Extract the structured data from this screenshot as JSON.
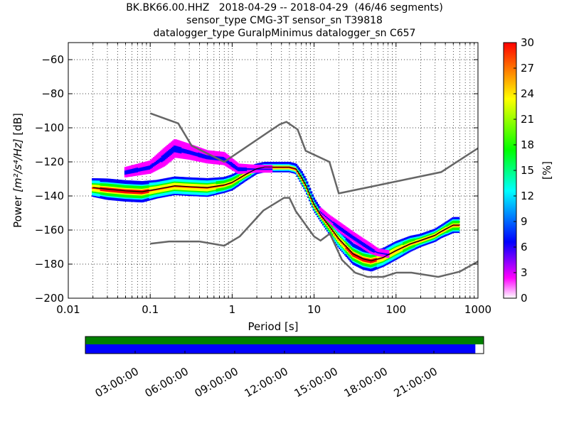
{
  "chart_data": {
    "type": "heatmap",
    "title_lines": [
      "BK.BK66.00.HHZ   2018-04-29 -- 2018-04-29  (46/46 segments)",
      "sensor_type CMG-3T sensor_sn T39818",
      "datalogger_type GuralpMinimus datalogger_sn C657"
    ],
    "xlabel": "Period [s]",
    "ylabel_main": "Power ",
    "ylabel_unit": "[m²/s⁴/Hz]",
    "ylabel_db": " [dB]",
    "xscale": "log",
    "xlim": [
      0.01,
      1000
    ],
    "ylim": [
      -200,
      -50
    ],
    "x_ticks": [
      0.01,
      0.1,
      1,
      10,
      100,
      1000
    ],
    "x_tick_labels": [
      "0.01",
      "0.1",
      "1",
      "10",
      "100",
      "1000"
    ],
    "y_ticks": [
      -200,
      -180,
      -160,
      -140,
      -120,
      -100,
      -80,
      -60
    ],
    "y_tick_labels": [
      "−200",
      "−180",
      "−160",
      "−140",
      "−120",
      "−100",
      "−80",
      "−60"
    ],
    "grid": "dotted",
    "colorbar": {
      "label": "[%]",
      "range": [
        0,
        30
      ],
      "ticks": [
        0,
        3,
        6,
        9,
        12,
        15,
        18,
        21,
        24,
        27,
        30
      ],
      "tick_labels": [
        "0",
        "3",
        "6",
        "9",
        "12",
        "15",
        "18",
        "21",
        "24",
        "27",
        "30"
      ],
      "colormap": "pqlx",
      "colors": [
        "#ffffff",
        "#ff00ff",
        "#0000ff",
        "#00ffff",
        "#00ff00",
        "#ffff00",
        "#ff0000"
      ]
    },
    "reference_curves": {
      "nhnm": {
        "color": "#666666",
        "x": [
          0.1,
          0.22,
          0.32,
          0.8,
          3.8,
          4.6,
          6.3,
          7.9,
          15.4,
          20,
          354.8,
          1000
        ],
        "y": [
          -91.5,
          -97.4,
          -110.5,
          -120,
          -98,
          -96.5,
          -101,
          -113.5,
          -120,
          -138.5,
          -126,
          -112
        ]
      },
      "nlnm": {
        "color": "#666666",
        "x": [
          0.1,
          0.17,
          0.4,
          0.8,
          1.24,
          2.4,
          4.3,
          5,
          6,
          10,
          12,
          15.6,
          21.9,
          31.6,
          45,
          70,
          101,
          154,
          328,
          600,
          1000
        ],
        "y": [
          -168,
          -166.7,
          -166.7,
          -169.2,
          -163.7,
          -148.6,
          -141.1,
          -141.1,
          -149,
          -163.8,
          -166.2,
          -162.1,
          -177.5,
          -185,
          -187.5,
          -187.5,
          -185,
          -185,
          -187.5,
          -184.4,
          -178.4
        ]
      }
    },
    "mean_curve": {
      "color": "#000000",
      "x": [
        0.02,
        0.03,
        0.05,
        0.08,
        0.12,
        0.2,
        0.3,
        0.5,
        0.8,
        1.0,
        1.5,
        2.0,
        2.5,
        3,
        4,
        5,
        6,
        7,
        8,
        9,
        10,
        12,
        15,
        20,
        30,
        40,
        50,
        70,
        100,
        150,
        200,
        300,
        350,
        500,
        600
      ],
      "y": [
        -135,
        -136,
        -137,
        -137.5,
        -136,
        -134,
        -134.5,
        -135,
        -133.5,
        -132,
        -127,
        -124,
        -123,
        -123,
        -123,
        -123,
        -124,
        -129,
        -134,
        -140,
        -145,
        -151,
        -157,
        -165,
        -174,
        -177,
        -178,
        -176,
        -172,
        -168,
        -166,
        -163,
        -161,
        -157,
        -157
      ]
    },
    "ppsd_bands": [
      {
        "x": [
          0.02,
          0.03,
          0.05,
          0.08,
          0.12,
          0.2,
          0.3,
          0.5,
          0.8,
          1.0,
          1.5,
          2.0,
          2.5,
          3,
          4,
          5,
          6,
          7,
          8,
          9,
          10,
          12,
          15,
          20,
          30,
          40,
          50,
          70,
          100,
          150,
          200,
          300,
          350,
          500,
          600
        ],
        "y": [
          -135,
          -136,
          -137,
          -137.5,
          -136,
          -134,
          -134.5,
          -135,
          -133.5,
          -132,
          -127,
          -124,
          -123,
          -123,
          -123,
          -123,
          -124,
          -129,
          -134,
          -140,
          -145,
          -151,
          -157,
          -165,
          -174,
          -177,
          -178,
          -176,
          -172,
          -168,
          -166,
          -163,
          -161,
          -157,
          -157
        ],
        "spread": [
          3,
          3.5,
          3.5,
          3.5,
          3,
          3,
          3,
          3,
          2.5,
          2.5,
          2,
          1.5,
          1.5,
          1.5,
          1.5,
          1.5,
          1.5,
          2,
          2,
          2,
          2,
          2,
          2.5,
          3,
          3.5,
          3.5,
          3.5,
          3,
          3,
          2.5,
          2,
          2,
          2,
          2.5,
          2.5
        ],
        "level": 11
      },
      {
        "x": [
          0.05,
          0.1,
          0.15,
          0.2,
          0.3,
          0.5,
          0.8,
          1.2,
          2.0,
          3.0
        ],
        "y": [
          -126,
          -123,
          -117,
          -112,
          -114,
          -117,
          -118,
          -124,
          -124,
          -124
        ],
        "spread": [
          1.5,
          2,
          3,
          3,
          2.5,
          2,
          2,
          1.5,
          1,
          1
        ],
        "level": 1
      },
      {
        "x": [
          12,
          15,
          20,
          30,
          40,
          50,
          60,
          80
        ],
        "y": [
          -149,
          -153,
          -158,
          -164,
          -168,
          -171,
          -173,
          -174
        ],
        "spread": [
          1,
          1,
          1.5,
          1.5,
          1.5,
          1.5,
          1,
          1
        ],
        "level": 1
      }
    ],
    "time_bar": {
      "top_color": "#008000",
      "bottom_color": "#0000ff",
      "tick_labels": [
        "03:00:00",
        "06:00:00",
        "09:00:00",
        "12:00:00",
        "15:00:00",
        "18:00:00",
        "21:00:00"
      ],
      "tick_hours": [
        3,
        6,
        9,
        12,
        15,
        18,
        21
      ],
      "coverage_end_hour": 23.5
    }
  }
}
